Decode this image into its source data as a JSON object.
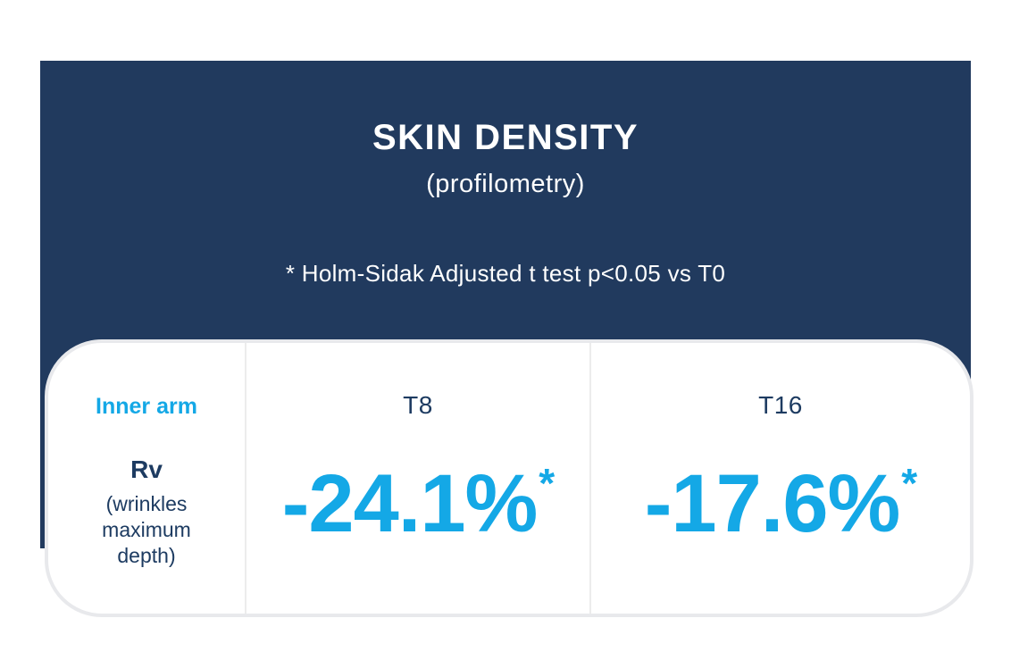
{
  "colors": {
    "navy": "#213a5e",
    "accent": "#14a8e6",
    "text_navy": "#1d3b61",
    "card_border": "#e8e9ec",
    "divider": "#ececec",
    "background": "#ffffff"
  },
  "header": {
    "title": "SKIN DENSITY",
    "subtitle": "(profilometry)",
    "note": "* Holm-Sidak Adjusted t test p<0.05 vs T0"
  },
  "table": {
    "row_header": {
      "site": "Inner arm",
      "parameter": "Rv",
      "parameter_description": "(wrinkles maximum depth)"
    },
    "columns": [
      {
        "label": "T8",
        "value": "-24.1%",
        "significance": "*"
      },
      {
        "label": "T16",
        "value": "-17.6%",
        "significance": "*"
      }
    ]
  },
  "chart_data": {
    "type": "table",
    "title": "SKIN DENSITY",
    "subtitle": "(profilometry)",
    "note": "* Holm-Sidak Adjusted t test p<0.05 vs T0",
    "row_label": "Inner arm — Rv (wrinkles maximum depth)",
    "categories": [
      "T8",
      "T16"
    ],
    "values": [
      -24.1,
      -17.6
    ],
    "unit": "%",
    "significant": [
      true,
      true
    ]
  }
}
